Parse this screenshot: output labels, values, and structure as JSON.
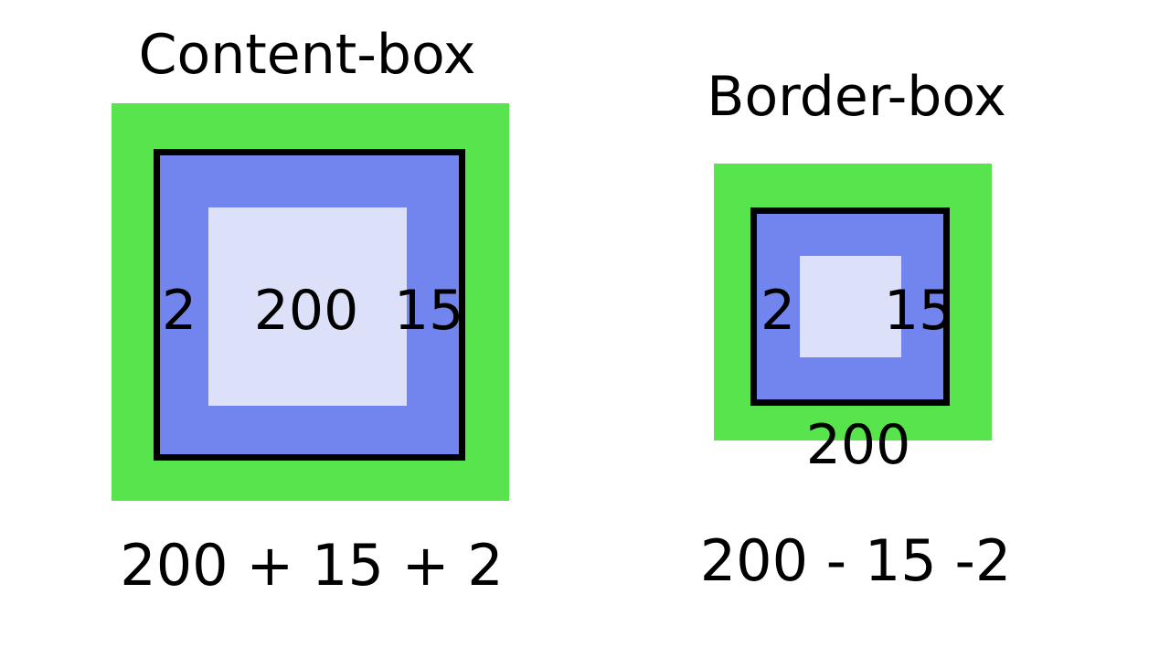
{
  "content_box": {
    "title": "Content-box",
    "border_label": "2",
    "content_label": "200",
    "padding_label": "15",
    "formula": "200 + 15 + 2"
  },
  "border_box": {
    "title": "Border-box",
    "border_label": "2",
    "padding_label": "15",
    "width_label": "200",
    "formula": "200 - 15 -2"
  },
  "colors": {
    "margin": "#58e44d",
    "padding": "#7284ee",
    "content": "#dde0f9",
    "border": "#000000"
  }
}
